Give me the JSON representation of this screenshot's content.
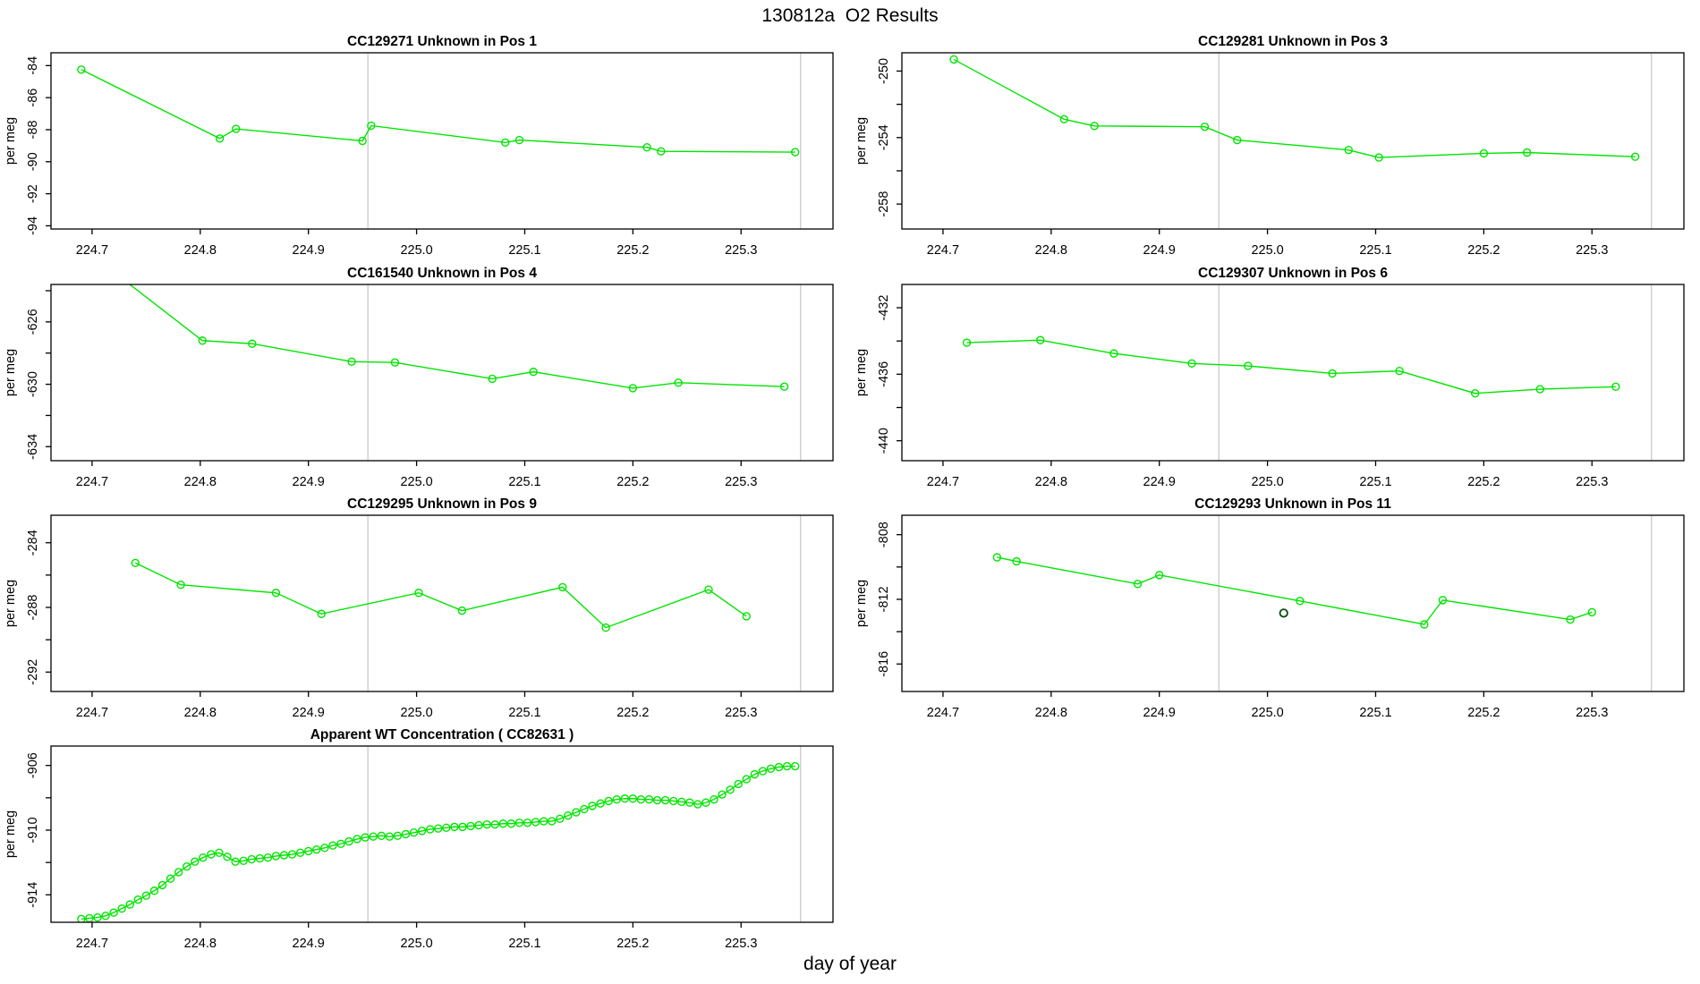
{
  "page": {
    "title": "130812a  O2 Results",
    "xlabel": "day of year",
    "ylabel": "per meg"
  },
  "style": {
    "series_color": "#00e500",
    "flagged_point_color": "#0b4a0b",
    "guide_color": "#cbcbcb",
    "axis_color": "#000000",
    "text_color": "#000000",
    "background": "#ffffff"
  },
  "x_axis": {
    "label": "day of year",
    "range": [
      224.662,
      225.385
    ],
    "ticks": [
      224.7,
      224.8,
      224.9,
      225.0,
      225.1,
      225.2,
      225.3
    ],
    "tick_labels": [
      "224.7",
      "224.8",
      "224.9",
      "225.0",
      "225.1",
      "225.2",
      "225.3"
    ],
    "guide_lines": [
      224.955,
      225.355
    ]
  },
  "chart_data": [
    {
      "type": "line",
      "sample_id": "CC129271",
      "label": "Unknown in Pos 1",
      "title": "CC129271    Unknown in Pos 1",
      "ylabel": "per meg",
      "ylim": [
        -94.2,
        -83.2
      ],
      "yticks": [
        -84,
        -86,
        -88,
        -90,
        -92,
        -94
      ],
      "yticks_labeled": [
        -84,
        -86,
        -88,
        -90,
        -92,
        -94
      ],
      "x": [
        224.69,
        224.818,
        224.833,
        224.95,
        224.958,
        225.082,
        225.095,
        225.213,
        225.226,
        225.35
      ],
      "y": [
        -84.25,
        -88.55,
        -87.95,
        -88.7,
        -87.75,
        -88.8,
        -88.65,
        -89.1,
        -89.35,
        -89.4
      ]
    },
    {
      "type": "line",
      "sample_id": "CC129281",
      "label": "Unknown in Pos 3",
      "title": "CC129281    Unknown in Pos 3",
      "ylabel": "per meg",
      "ylim": [
        -259.5,
        -248.9
      ],
      "yticks": [
        -250,
        -252,
        -254,
        -256,
        -258
      ],
      "yticks_labeled": [
        -250,
        -254,
        -258
      ],
      "x": [
        224.71,
        224.812,
        224.84,
        224.942,
        224.972,
        225.075,
        225.103,
        225.2,
        225.24,
        225.34
      ],
      "y": [
        -249.3,
        -252.9,
        -253.3,
        -253.35,
        -254.15,
        -254.75,
        -255.2,
        -254.95,
        -254.9,
        -255.15
      ]
    },
    {
      "type": "line",
      "sample_id": "CC161540",
      "label": "Unknown in Pos 4",
      "title": "CC161540    Unknown in Pos 4",
      "ylabel": "per meg",
      "ylim": [
        -634.9,
        -623.6
      ],
      "yticks": [
        -624,
        -626,
        -628,
        -630,
        -632,
        -634
      ],
      "yticks_labeled": [
        -626,
        -630,
        -634
      ],
      "x": [
        224.72,
        224.802,
        224.848,
        224.94,
        224.98,
        225.07,
        225.108,
        225.2,
        225.242,
        225.34
      ],
      "y": [
        -622.8,
        -627.2,
        -627.4,
        -628.55,
        -628.6,
        -629.65,
        -629.2,
        -630.25,
        -629.9,
        -630.15
      ]
    },
    {
      "type": "line",
      "sample_id": "CC129307",
      "label": "Unknown in Pos 6",
      "title": "CC129307    Unknown in Pos 6",
      "ylabel": "per meg",
      "ylim": [
        -441.2,
        -430.6
      ],
      "yticks": [
        -432,
        -434,
        -436,
        -438,
        -440
      ],
      "yticks_labeled": [
        -432,
        -436,
        -440
      ],
      "x": [
        224.722,
        224.79,
        224.858,
        224.93,
        224.982,
        225.06,
        225.122,
        225.192,
        225.252,
        225.322
      ],
      "y": [
        -434.1,
        -433.95,
        -434.75,
        -435.35,
        -435.5,
        -435.95,
        -435.8,
        -437.15,
        -436.9,
        -436.75
      ]
    },
    {
      "type": "line",
      "sample_id": "CC129295",
      "label": "Unknown in Pos 9",
      "title": "CC129295    Unknown in Pos 9",
      "ylabel": "per meg",
      "ylim": [
        -293.2,
        -282.3
      ],
      "yticks": [
        -284,
        -286,
        -288,
        -290,
        -292
      ],
      "yticks_labeled": [
        -284,
        -288,
        -292
      ],
      "x": [
        224.74,
        224.782,
        224.87,
        224.912,
        225.002,
        225.042,
        225.135,
        225.175,
        225.27,
        225.305
      ],
      "y": [
        -285.25,
        -286.6,
        -287.1,
        -288.4,
        -287.1,
        -288.2,
        -286.75,
        -289.25,
        -286.9,
        -288.55
      ]
    },
    {
      "type": "line",
      "sample_id": "CC129293",
      "label": "Unknown in Pos 11",
      "title": "CC129293    Unknown in Pos 11",
      "ylabel": "per meg",
      "ylim": [
        -817.7,
        -806.8
      ],
      "yticks": [
        -808,
        -810,
        -812,
        -814,
        -816
      ],
      "yticks_labeled": [
        -808,
        -812,
        -816
      ],
      "x": [
        224.75,
        224.768,
        224.88,
        224.9,
        225.03,
        225.145,
        225.162,
        225.28,
        225.3
      ],
      "y": [
        -809.4,
        -809.65,
        -811.05,
        -810.5,
        -812.1,
        -813.55,
        -812.05,
        -813.25,
        -812.8
      ],
      "extra_points": [
        {
          "x": 225.015,
          "y": -812.85
        }
      ]
    },
    {
      "type": "line",
      "sample_id": "CC82631",
      "label": "Apparent WT Concentration",
      "title": "Apparent WT Concentration ( CC82631 )",
      "ylabel": "per meg",
      "ylim": [
        -915.7,
        -904.8
      ],
      "yticks": [
        -906,
        -908,
        -910,
        -912,
        -914
      ],
      "yticks_labeled": [
        -906,
        -910,
        -914
      ],
      "x": [
        224.69,
        224.6975,
        224.705,
        224.7125,
        224.72,
        224.7275,
        224.735,
        224.7425,
        224.75,
        224.7575,
        224.765,
        224.7725,
        224.78,
        224.7875,
        224.795,
        224.8025,
        224.81,
        224.8175,
        224.825,
        224.8325,
        224.84,
        224.8475,
        224.855,
        224.8625,
        224.87,
        224.8775,
        224.885,
        224.8925,
        224.9,
        224.9075,
        224.915,
        224.9225,
        224.93,
        224.9375,
        224.945,
        224.9525,
        224.96,
        224.9675,
        224.975,
        224.9825,
        224.99,
        224.9975,
        225.005,
        225.0125,
        225.02,
        225.0275,
        225.035,
        225.0425,
        225.05,
        225.0575,
        225.065,
        225.0725,
        225.08,
        225.0875,
        225.095,
        225.1025,
        225.11,
        225.1175,
        225.125,
        225.1325,
        225.14,
        225.1475,
        225.155,
        225.1625,
        225.17,
        225.1775,
        225.185,
        225.1925,
        225.2,
        225.2075,
        225.215,
        225.2225,
        225.23,
        225.2375,
        225.245,
        225.2525,
        225.26,
        225.2675,
        225.275,
        225.2825,
        225.29,
        225.2975,
        225.305,
        225.3125,
        225.32,
        225.3275,
        225.335,
        225.3425,
        225.35
      ],
      "y": [
        -915.5,
        -915.45,
        -915.4,
        -915.3,
        -915.1,
        -914.85,
        -914.6,
        -914.3,
        -914.05,
        -913.75,
        -913.4,
        -913.0,
        -912.6,
        -912.25,
        -911.95,
        -911.7,
        -911.5,
        -911.4,
        -911.65,
        -911.95,
        -911.9,
        -911.8,
        -911.75,
        -911.7,
        -911.6,
        -911.55,
        -911.5,
        -911.4,
        -911.3,
        -911.2,
        -911.1,
        -910.95,
        -910.85,
        -910.7,
        -910.55,
        -910.45,
        -910.4,
        -910.35,
        -910.4,
        -910.35,
        -910.25,
        -910.15,
        -910.05,
        -909.95,
        -909.9,
        -909.85,
        -909.8,
        -909.8,
        -909.75,
        -909.7,
        -909.65,
        -909.65,
        -909.6,
        -909.6,
        -909.55,
        -909.55,
        -909.5,
        -909.45,
        -909.45,
        -909.3,
        -909.1,
        -908.9,
        -908.7,
        -908.5,
        -908.35,
        -908.2,
        -908.1,
        -908.05,
        -908.05,
        -908.1,
        -908.1,
        -908.15,
        -908.15,
        -908.2,
        -908.25,
        -908.3,
        -908.4,
        -908.3,
        -908.1,
        -907.8,
        -907.5,
        -907.15,
        -906.85,
        -906.55,
        -906.35,
        -906.2,
        -906.1,
        -906.05,
        -906.05
      ]
    }
  ]
}
